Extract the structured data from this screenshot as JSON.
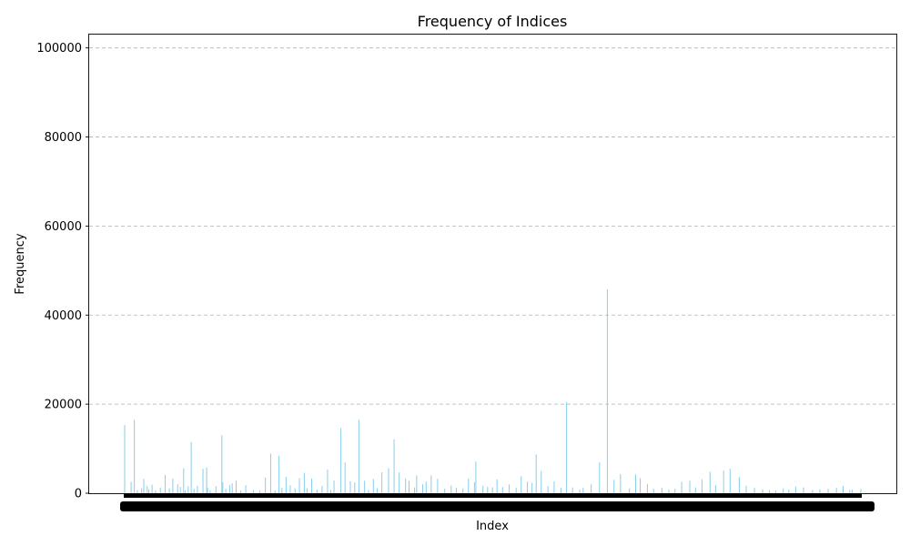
{
  "chart_data": {
    "type": "bar",
    "title": "Frequency of Indices",
    "xlabel": "Index",
    "ylabel": "Frequency",
    "ylim": [
      0,
      103000
    ],
    "yticks": [
      0,
      20000,
      40000,
      60000,
      80000,
      100000
    ],
    "grid": "y-dashed",
    "bar_color": "#87ceeb",
    "x_tick_labels_note": "overlapping, illegible",
    "x": [
      1,
      29,
      43,
      56,
      75,
      84,
      99,
      106,
      120,
      135,
      156,
      177,
      195,
      210,
      231,
      243,
      257,
      264,
      277,
      290,
      302,
      317,
      341,
      357,
      361,
      372,
      397,
      423,
      427,
      440,
      457,
      468,
      485,
      505,
      527,
      560,
      587,
      612,
      635,
      654,
      671,
      684,
      702,
      720,
      741,
      760,
      781,
      793,
      813,
      836,
      858,
      882,
      896,
      910,
      940,
      958,
      981,
      1000,
      1018,
      1043,
      1060,
      1081,
      1098,
      1118,
      1147,
      1171,
      1193,
      1221,
      1236,
      1260,
      1269,
      1295,
      1310,
      1332,
      1360,
      1391,
      1419,
      1441,
      1470,
      1494,
      1520,
      1526,
      1557,
      1577,
      1598,
      1618,
      1642,
      1671,
      1701,
      1723,
      1750,
      1770,
      1788,
      1810,
      1839,
      1866,
      1896,
      1920,
      1946,
      1977,
      1992,
      2027,
      2063,
      2097,
      2126,
      2154,
      2193,
      2220,
      2240,
      2271,
      2298,
      2334,
      2364,
      2391,
      2420,
      2455,
      2480,
      2508,
      2543,
      2567,
      2602,
      2630,
      2670,
      2700,
      2736,
      2771,
      2801,
      2828,
      2861,
      2885,
      2915,
      2949,
      2988,
      3020,
      3056,
      3092,
      3121,
      3150,
      3160,
      3198
    ],
    "values": [
      15300,
      2600,
      16500,
      700,
      1100,
      3200,
      1600,
      900,
      1900,
      600,
      1300,
      4100,
      1100,
      3300,
      2000,
      1400,
      5600,
      600,
      1600,
      11500,
      1000,
      1700,
      5500,
      5800,
      1200,
      700,
      1600,
      13000,
      2500,
      1000,
      1800,
      2200,
      2800,
      600,
      1800,
      700,
      600,
      3500,
      8900,
      600,
      8400,
      1200,
      3700,
      1800,
      1100,
      3400,
      4600,
      1100,
      3300,
      800,
      1600,
      5300,
      700,
      2900,
      14600,
      6900,
      2700,
      2400,
      16500,
      2800,
      700,
      3200,
      1100,
      4700,
      5600,
      12100,
      4700,
      3300,
      2800,
      1300,
      4000,
      2000,
      2600,
      4000,
      3200,
      1000,
      1700,
      1200,
      1100,
      3300,
      2500,
      7100,
      1700,
      1400,
      1300,
      3100,
      1400,
      2000,
      1200,
      3800,
      2600,
      2300,
      8700,
      5000,
      1600,
      2700,
      1200,
      20500,
      1300,
      800,
      1200,
      2000,
      6900,
      45800,
      3000,
      4300,
      1100,
      4200,
      3400,
      2100,
      1000,
      1200,
      800,
      1000,
      2500,
      2800,
      1300,
      3100,
      4800,
      1800,
      5100,
      5500,
      3600,
      1700,
      1200,
      900,
      700,
      600,
      1100,
      800,
      1500,
      1300,
      700,
      900,
      1000,
      1200,
      1600,
      700,
      800,
      900
    ]
  }
}
